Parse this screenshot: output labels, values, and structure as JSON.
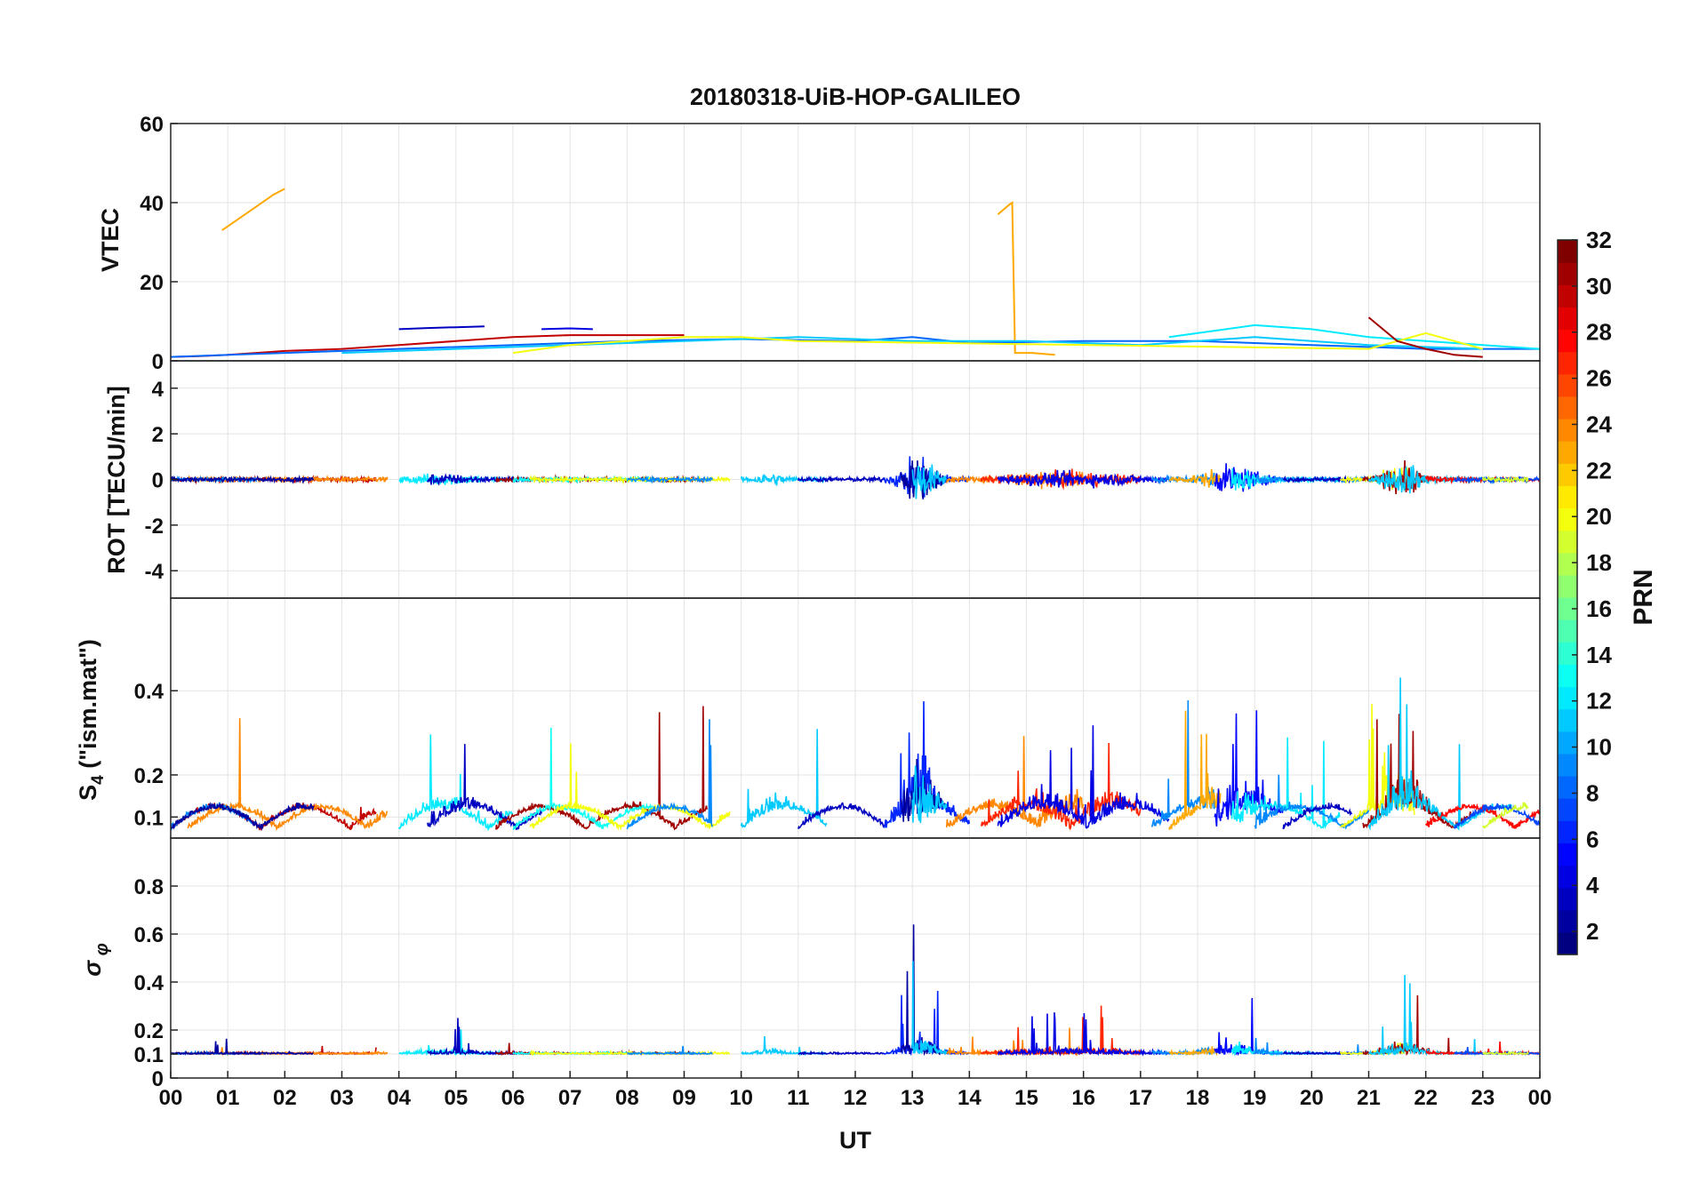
{
  "chart_data": {
    "type": "line",
    "title": "20180318-UiB-HOP-GALILEO",
    "xlabel": "UT",
    "x_ticks": [
      "00",
      "01",
      "02",
      "03",
      "04",
      "05",
      "06",
      "07",
      "08",
      "09",
      "10",
      "11",
      "12",
      "13",
      "14",
      "15",
      "16",
      "17",
      "18",
      "19",
      "20",
      "21",
      "22",
      "23",
      "00"
    ],
    "xlim": [
      0,
      24
    ],
    "grid": true,
    "colorbar": {
      "label": "PRN",
      "range": [
        1,
        32
      ],
      "ticks": [
        "2",
        "4",
        "6",
        "8",
        "10",
        "12",
        "14",
        "16",
        "18",
        "20",
        "22",
        "24",
        "26",
        "28",
        "30",
        "32"
      ],
      "colormap": "jet"
    },
    "panels": [
      {
        "ylabel": "VTEC",
        "ylim": [
          0,
          60
        ],
        "y_ticks": [
          "0",
          "20",
          "40",
          "60"
        ],
        "series": [
          {
            "prn": 23,
            "x": [
              0.9,
              1.2,
              1.5,
              1.8,
              2.0
            ],
            "y": [
              33,
              36,
              39,
              42,
              43.5
            ]
          },
          {
            "prn": 23,
            "x": [
              14.5,
              14.7,
              14.75,
              14.8,
              15.1,
              15.5
            ],
            "y": [
              37,
              39.5,
              40,
              2,
              2,
              1.5
            ]
          },
          {
            "prn": 30,
            "x": [
              0,
              0.5,
              1,
              1.5,
              2,
              3,
              4,
              5,
              6,
              7,
              8,
              9
            ],
            "y": [
              1,
              1.2,
              1.5,
              2,
              2.5,
              3,
              4,
              5,
              6,
              6.5,
              6.5,
              6.5
            ]
          },
          {
            "prn": 3,
            "x": [
              4,
              4.5,
              5,
              5.5
            ],
            "y": [
              8,
              8.3,
              8.5,
              8.7
            ]
          },
          {
            "prn": 4,
            "x": [
              6.5,
              7,
              7.4
            ],
            "y": [
              8,
              8.2,
              8
            ]
          },
          {
            "prn": 8,
            "x": [
              0,
              2,
              4,
              6,
              8,
              10,
              12,
              13,
              14,
              16,
              18,
              20,
              22,
              24
            ],
            "y": [
              1,
              2,
              3,
              4,
              5,
              5.5,
              5,
              6,
              4.5,
              5,
              5,
              4,
              3,
              3
            ]
          },
          {
            "prn": 12,
            "x": [
              17.5,
              18.5,
              19,
              20,
              21,
              22,
              23,
              24
            ],
            "y": [
              6,
              8,
              9,
              8,
              6,
              5,
              4,
              3
            ]
          },
          {
            "prn": 11,
            "x": [
              3,
              5,
              7,
              9,
              11,
              13,
              15,
              17,
              19,
              21,
              23
            ],
            "y": [
              2,
              3,
              4,
              5,
              6,
              5,
              5,
              4,
              6,
              4,
              3
            ]
          },
          {
            "prn": 20,
            "x": [
              6,
              7,
              8,
              9,
              10,
              11,
              21,
              21.5,
              22,
              23
            ],
            "y": [
              2,
              4,
              5,
              6,
              6,
              5,
              3,
              5,
              7,
              3
            ]
          },
          {
            "prn": 31,
            "x": [
              21,
              21.5,
              22,
              22.5,
              23
            ],
            "y": [
              11,
              5,
              3,
              1.5,
              1
            ]
          }
        ]
      },
      {
        "ylabel": "ROT [TECU/min]",
        "ylim": [
          -5.2,
          5.2
        ],
        "y_ticks": [
          "-4",
          "-2",
          "0",
          "2",
          "4"
        ],
        "series": []
      },
      {
        "ylabel": "S4 (\"ism.mat\")",
        "ylim": [
          0.05,
          0.62
        ],
        "y_ticks": [
          "0.1",
          "0.2",
          "0.4"
        ],
        "series": []
      },
      {
        "ylabel": "σ φ",
        "ylim": [
          0,
          1
        ],
        "y_ticks": [
          "0",
          "0.1",
          "0.2",
          "0.4",
          "0.6",
          "0.8"
        ],
        "series": []
      }
    ]
  }
}
